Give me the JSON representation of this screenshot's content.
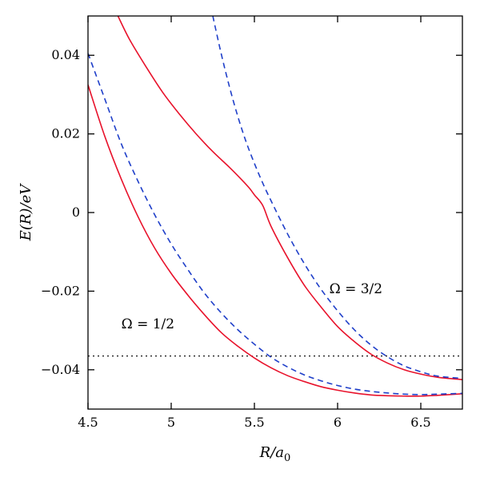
{
  "chart_data": {
    "type": "line",
    "xlabel_parts": {
      "base": "R/a",
      "sub": "0"
    },
    "ylabel": "E(R)/eV",
    "xlim": [
      4.5,
      6.75
    ],
    "ylim": [
      -0.05,
      0.05
    ],
    "xticks": [
      4.5,
      5,
      5.5,
      6,
      6.5
    ],
    "yticks": [
      -0.04,
      -0.02,
      0,
      0.02,
      0.04
    ],
    "xtick_labels": [
      "4.5",
      "5",
      "5.5",
      "6",
      "6.5"
    ],
    "ytick_labels": [
      "−0.04",
      "−0.02",
      "0",
      "0.02",
      "0.04"
    ],
    "reference_line": {
      "y": -0.0365
    },
    "annotations": [
      {
        "id": "omega-half",
        "text": "Ω = 1/2",
        "x": 4.7,
        "y": -0.0295
      },
      {
        "id": "omega-three-halves",
        "text": "Ω = 3/2",
        "x": 5.95,
        "y": -0.0205
      }
    ],
    "series": [
      {
        "style": "solid",
        "color": "#e8122b",
        "points": [
          [
            4.5,
            0.0325
          ],
          [
            4.6,
            0.0195
          ],
          [
            4.7,
            0.0085
          ],
          [
            4.8,
            -0.001
          ],
          [
            4.9,
            -0.009
          ],
          [
            5.0,
            -0.0155
          ],
          [
            5.1,
            -0.021
          ],
          [
            5.2,
            -0.026
          ],
          [
            5.3,
            -0.0305
          ],
          [
            5.4,
            -0.034
          ],
          [
            5.5,
            -0.037
          ],
          [
            5.6,
            -0.0395
          ],
          [
            5.7,
            -0.0415
          ],
          [
            5.8,
            -0.043
          ],
          [
            5.9,
            -0.0443
          ],
          [
            6.0,
            -0.0452
          ],
          [
            6.1,
            -0.0459
          ],
          [
            6.2,
            -0.0464
          ],
          [
            6.3,
            -0.0466
          ],
          [
            6.4,
            -0.0467
          ],
          [
            6.5,
            -0.0467
          ],
          [
            6.6,
            -0.0465
          ],
          [
            6.75,
            -0.0461
          ]
        ]
      },
      {
        "style": "dashed",
        "color": "#1f3fc9",
        "points": [
          [
            4.5,
            0.0405
          ],
          [
            4.6,
            0.029
          ],
          [
            4.7,
            0.0175
          ],
          [
            4.8,
            0.008
          ],
          [
            4.9,
            -0.0005
          ],
          [
            5.0,
            -0.008
          ],
          [
            5.1,
            -0.0145
          ],
          [
            5.2,
            -0.0205
          ],
          [
            5.3,
            -0.0255
          ],
          [
            5.4,
            -0.0298
          ],
          [
            5.5,
            -0.0335
          ],
          [
            5.6,
            -0.0368
          ],
          [
            5.7,
            -0.0393
          ],
          [
            5.8,
            -0.0413
          ],
          [
            5.9,
            -0.0428
          ],
          [
            6.0,
            -0.044
          ],
          [
            6.1,
            -0.0449
          ],
          [
            6.2,
            -0.0455
          ],
          [
            6.3,
            -0.0459
          ],
          [
            6.4,
            -0.0462
          ],
          [
            6.5,
            -0.0463
          ],
          [
            6.6,
            -0.0462
          ],
          [
            6.75,
            -0.046
          ]
        ]
      },
      {
        "style": "solid",
        "color": "#e8122b",
        "points": [
          [
            4.68,
            0.05
          ],
          [
            4.75,
            0.044
          ],
          [
            4.85,
            0.037
          ],
          [
            4.95,
            0.0305
          ],
          [
            5.05,
            0.025
          ],
          [
            5.15,
            0.02
          ],
          [
            5.25,
            0.0155
          ],
          [
            5.35,
            0.0115
          ],
          [
            5.42,
            0.0085
          ],
          [
            5.47,
            0.0062
          ],
          [
            5.5,
            0.0045
          ],
          [
            5.55,
            0.0018
          ],
          [
            5.6,
            -0.0035
          ],
          [
            5.7,
            -0.0115
          ],
          [
            5.8,
            -0.0185
          ],
          [
            5.9,
            -0.024
          ],
          [
            6.0,
            -0.029
          ],
          [
            6.1,
            -0.0328
          ],
          [
            6.2,
            -0.036
          ],
          [
            6.3,
            -0.0383
          ],
          [
            6.4,
            -0.04
          ],
          [
            6.5,
            -0.0411
          ],
          [
            6.6,
            -0.0419
          ],
          [
            6.75,
            -0.0425
          ]
        ]
      },
      {
        "style": "dashed",
        "color": "#1f3fc9",
        "points": [
          [
            5.25,
            0.05
          ],
          [
            5.3,
            0.0405
          ],
          [
            5.35,
            0.032
          ],
          [
            5.4,
            0.0245
          ],
          [
            5.45,
            0.018
          ],
          [
            5.5,
            0.0125
          ],
          [
            5.55,
            0.0075
          ],
          [
            5.6,
            0.003
          ],
          [
            5.7,
            -0.0055
          ],
          [
            5.8,
            -0.013
          ],
          [
            5.9,
            -0.0195
          ],
          [
            6.0,
            -0.025
          ],
          [
            6.1,
            -0.0298
          ],
          [
            6.2,
            -0.0337
          ],
          [
            6.3,
            -0.0367
          ],
          [
            6.4,
            -0.039
          ],
          [
            6.5,
            -0.0405
          ],
          [
            6.6,
            -0.0416
          ],
          [
            6.75,
            -0.0422
          ]
        ]
      }
    ]
  }
}
